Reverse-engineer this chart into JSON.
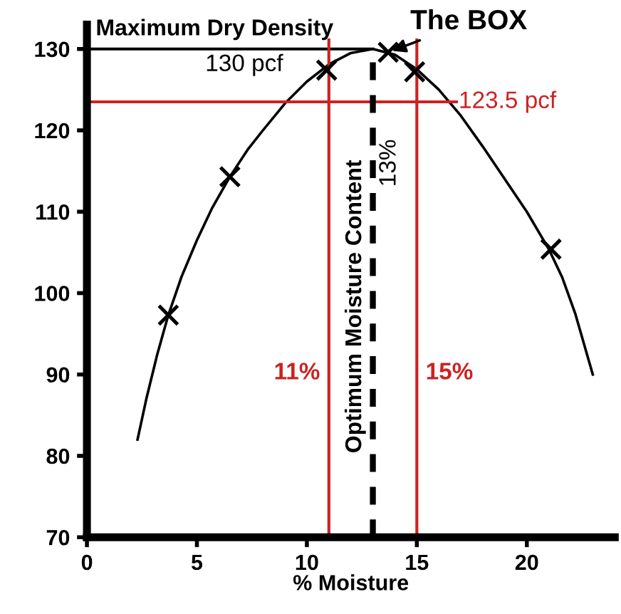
{
  "chart_data": {
    "type": "line",
    "xlabel": "% Moisture",
    "xlim": [
      0,
      24
    ],
    "ylim": [
      70,
      133
    ],
    "xticks": [
      0,
      5,
      10,
      15,
      20
    ],
    "yticks": [
      70,
      80,
      90,
      100,
      110,
      120,
      130
    ],
    "grid": false,
    "series": [
      {
        "color": "#000000",
        "marker": "none",
        "x": [
          2.3,
          2.7,
          3.2,
          3.7,
          4.3,
          5,
          5.7,
          6.5,
          7.3,
          8,
          9,
          10,
          11,
          12,
          13,
          14,
          15,
          16,
          17,
          18,
          19,
          20,
          21,
          21.6,
          22.2,
          23
        ],
        "values": [
          82,
          87,
          92.5,
          97.3,
          102,
          106.5,
          110.5,
          114.3,
          117.6,
          120,
          123.3,
          126,
          128.1,
          129.5,
          130,
          129.3,
          127.5,
          125,
          121.8,
          118,
          114,
          110,
          105.4,
          102,
          97.5,
          90
        ]
      },
      {
        "type": "scatter",
        "color": "#000000",
        "marker": "cross",
        "x": [
          3.7,
          6.5,
          10.9,
          13.7,
          14.9,
          21.1
        ],
        "values": [
          97.3,
          114.3,
          127.4,
          129.6,
          127.2,
          105.4
        ]
      }
    ],
    "ref_lines": [
      {
        "axis": "y",
        "value": 130,
        "label": "130 pcf",
        "color": "#000000",
        "line_style": "solid"
      },
      {
        "axis": "y",
        "value": 123.5,
        "label": "123.5 pcf",
        "color": "#cc2222",
        "line_style": "solid"
      },
      {
        "axis": "x",
        "value": 11,
        "label": "11%",
        "color": "#cc2222",
        "line_style": "solid"
      },
      {
        "axis": "x",
        "value": 15,
        "label": "15%",
        "color": "#cc2222",
        "line_style": "solid"
      },
      {
        "axis": "x",
        "value": 13,
        "label": "13%",
        "color": "#000000",
        "line_style": "dashed"
      }
    ],
    "annotations": [
      "Maximum Dry Density",
      "Optimum Moisture Content",
      {
        "text": "The BOX",
        "x": 13.7,
        "y": 129.6
      }
    ]
  }
}
